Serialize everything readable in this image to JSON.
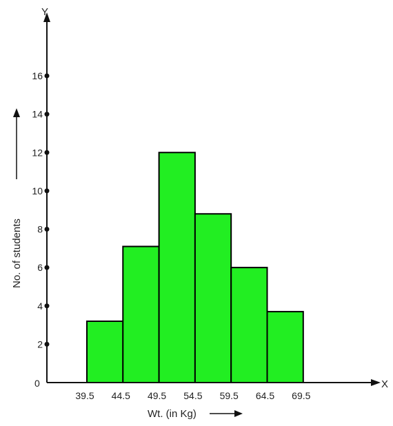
{
  "chart_data": {
    "type": "bar",
    "histogram": true,
    "bin_edges": [
      39.5,
      44.5,
      49.5,
      54.5,
      59.5,
      64.5,
      69.5
    ],
    "bin_edge_labels": [
      "39.5",
      "44.5",
      "49.5",
      "54.5",
      "59.5",
      "64.5",
      "69.5"
    ],
    "values": [
      3.2,
      7.1,
      12,
      8.8,
      6,
      3.7
    ],
    "ylim": [
      0,
      16
    ],
    "y_ticks": [
      2,
      4,
      6,
      8,
      10,
      12,
      14,
      16
    ],
    "y_tick_labels": [
      "2",
      "4",
      "6",
      "8",
      "10",
      "12",
      "14",
      "16"
    ],
    "origin_label": "0",
    "xlabel": "Wt. (in Kg)",
    "ylabel": "No. of students",
    "x_axis_letter": "X",
    "y_axis_letter": "Y",
    "bar_color": "#22ee22",
    "bar_outline_color": "#000000",
    "grid": false
  }
}
